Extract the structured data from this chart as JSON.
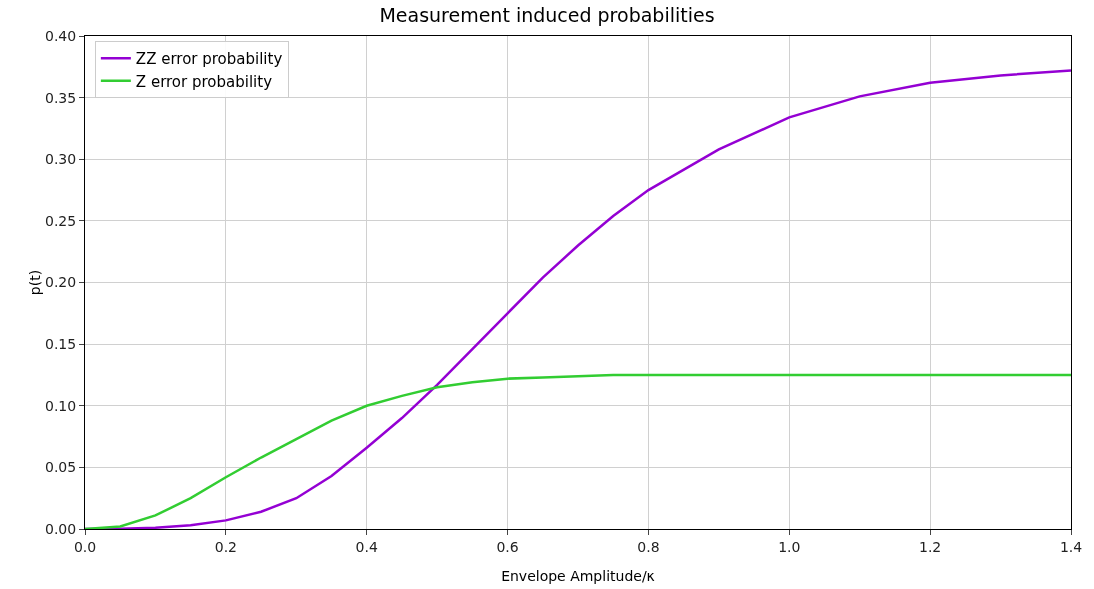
{
  "chart_data": {
    "type": "line",
    "title": "Measurement induced probabilities",
    "xlabel": "Envelope Amplitude/κ",
    "ylabel": "p(t)",
    "x": [
      0,
      0.05,
      0.1,
      0.15,
      0.2,
      0.25,
      0.3,
      0.35,
      0.4,
      0.45,
      0.5,
      0.55,
      0.6,
      0.65,
      0.7,
      0.75,
      0.8,
      0.9,
      1.0,
      1.1,
      1.2,
      1.3,
      1.4
    ],
    "series": [
      {
        "name": "ZZ error probability",
        "color": "#9400d3",
        "values": [
          0,
          0.0002,
          0.001,
          0.003,
          0.007,
          0.014,
          0.025,
          0.043,
          0.066,
          0.09,
          0.117,
          0.146,
          0.175,
          0.204,
          0.23,
          0.254,
          0.275,
          0.308,
          0.334,
          0.351,
          0.362,
          0.368,
          0.372
        ]
      },
      {
        "name": "Z error probability",
        "color": "#32cd32",
        "values": [
          0,
          0.002,
          0.011,
          0.025,
          0.042,
          0.058,
          0.073,
          0.088,
          0.1,
          0.108,
          0.115,
          0.119,
          0.122,
          0.123,
          0.124,
          0.125,
          0.125,
          0.125,
          0.125,
          0.125,
          0.125,
          0.125,
          0.125
        ]
      }
    ],
    "xlim": [
      0,
      1.4
    ],
    "xticks": [
      "0.0",
      0.2,
      0.4,
      0.6,
      0.8,
      "1.0",
      1.2,
      1.4
    ],
    "ylim": [
      0,
      0.4
    ],
    "yticks": [
      {
        "value": 0,
        "label": "0.00"
      },
      0.05,
      {
        "value": 0.1,
        "label": "0.10"
      },
      0.15,
      {
        "value": 0.2,
        "label": "0.20"
      },
      0.25,
      {
        "value": 0.3,
        "label": "0.30"
      },
      0.35,
      {
        "value": 0.4,
        "label": "0.40"
      }
    ],
    "grid": true,
    "legend": "top left",
    "marker": "none",
    "line_style": "solid"
  }
}
